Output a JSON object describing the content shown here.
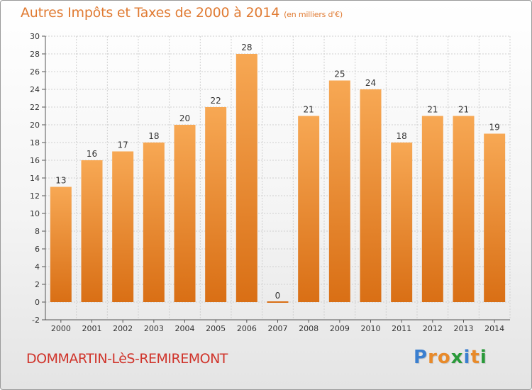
{
  "header": {
    "title": "Autres Impôts et Taxes de 2000 à 2014",
    "unit": "(en milliers d'€)"
  },
  "footer": {
    "location": "DOMMARTIN-LèS-REMIREMONT",
    "brand": [
      "P",
      "r",
      "o",
      "x",
      "i",
      "t",
      "i"
    ],
    "brand_colors": [
      "#3a7fd0",
      "#e88a2a",
      "#e88a2a",
      "#2a9a3a",
      "#3a7fd0",
      "#e88a2a",
      "#2a9a3a"
    ]
  },
  "colors": {
    "title": "#e07b33",
    "location": "#d0342b",
    "bar_top": "#f7a854",
    "bar_bottom": "#d96f15",
    "grid": "#d0d0d0"
  },
  "chart_data": {
    "type": "bar",
    "categories": [
      "2000",
      "2001",
      "2002",
      "2003",
      "2004",
      "2005",
      "2006",
      "2007",
      "2008",
      "2009",
      "2010",
      "2011",
      "2012",
      "2013",
      "2014"
    ],
    "values": [
      13,
      16,
      17,
      18,
      20,
      22,
      28,
      0,
      21,
      25,
      24,
      18,
      21,
      21,
      19
    ],
    "ylim": [
      -2,
      30
    ],
    "yticks": [
      -2,
      0,
      2,
      4,
      6,
      8,
      10,
      12,
      14,
      16,
      18,
      20,
      22,
      24,
      26,
      28,
      30
    ],
    "grid": true,
    "title": "Autres Impôts et Taxes de 2000 à 2014",
    "xlabel": "",
    "ylabel": ""
  }
}
